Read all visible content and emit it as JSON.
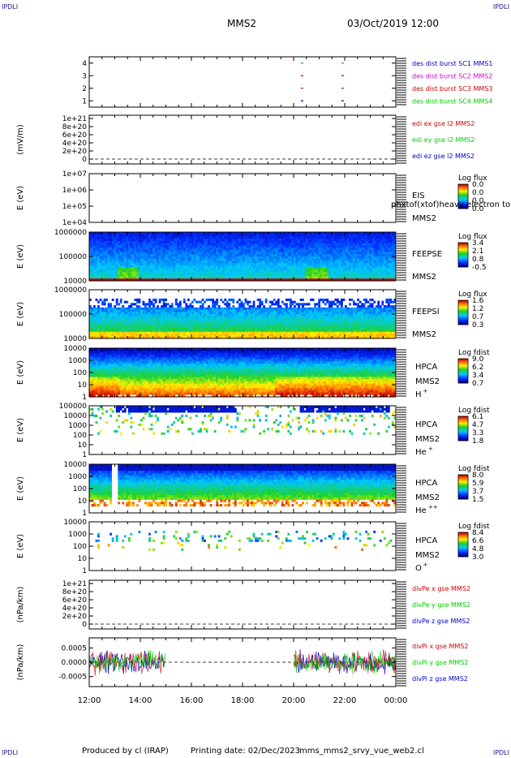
{
  "header": {
    "corner_left": "IPDLI",
    "corner_right": "IPDLI",
    "title": "MMS2",
    "datetime": "03/Oct/2019 12:00"
  },
  "footer": {
    "corner_left": "IPDLI",
    "corner_right": "IPDLI",
    "produced_by": "Produced by cl (IRAP)",
    "printing_date": "Printing date: 02/Dec/2023",
    "script_name": "mms_mms2_srvy_vue_web2.cl"
  },
  "colors": {
    "blue": "#0000cc",
    "magenta": "#cc00cc",
    "red": "#cc0000",
    "green": "#00cc00"
  },
  "chart_data": [
    {
      "id": "fpi-burst",
      "type": "scatter",
      "yticks": [
        "1",
        "2",
        "3",
        "4"
      ],
      "ylim": [
        0.5,
        4.5
      ],
      "legend": [
        {
          "label": "des dist burst SC1 MMS1",
          "color": "#0000cc"
        },
        {
          "label": "des dist burst SC2 MMS2",
          "color": "#cc00cc"
        },
        {
          "label": "des dist burst SC3 MMS3",
          "color": "#cc0000"
        },
        {
          "label": "des dist burst SC4 MMS4",
          "color": "#00cc00"
        }
      ],
      "series": [
        {
          "name": "des dist burst SC1 MMS1",
          "x": [
            "20:20",
            "21:55"
          ],
          "y": [
            1,
            1
          ]
        },
        {
          "name": "des dist burst SC2 MMS2",
          "x": [
            "20:20",
            "21:55"
          ],
          "y": [
            2,
            2
          ]
        },
        {
          "name": "des dist burst SC3 MMS3",
          "x": [
            "20:20",
            "21:55"
          ],
          "y": [
            3,
            3
          ]
        },
        {
          "name": "des dist burst SC4 MMS4",
          "x": [
            "20:20",
            "21:55"
          ],
          "y": [
            4,
            4
          ]
        }
      ]
    },
    {
      "id": "edi",
      "type": "line",
      "ylabel": "(mV/m)",
      "yticks": [
        "1e+21",
        "8e+20",
        "6e+20",
        "4e+20",
        "2e+20",
        "0"
      ],
      "legend": [
        {
          "label": "edi ex gse l2 MMS2",
          "color": "#cc0000"
        },
        {
          "label": "edi ey gse l2 MMS2",
          "color": "#00cc00"
        },
        {
          "label": "edi ez gse l2 MMS2",
          "color": "#0000cc"
        }
      ]
    },
    {
      "id": "eis",
      "type": "heatmap",
      "ylabel": "E (eV)",
      "yticks": [
        "1e+07",
        "1e+06",
        "1e+05",
        "1e+04"
      ],
      "labels": [
        "EIS",
        "MMS2"
      ],
      "overlay_text": "phxtof(xtof)heavy electron to",
      "colorbar": {
        "title": "Log flux",
        "ticks": [
          "0.0",
          "0.0",
          "0.0",
          "0.0"
        ]
      }
    },
    {
      "id": "feepse",
      "type": "heatmap",
      "ylabel": "E (eV)",
      "yticks": [
        "1000000",
        "100000",
        "10000"
      ],
      "labels": [
        "FEEPSE",
        "MMS2"
      ],
      "colorbar": {
        "title": "Log flux",
        "ticks": [
          "3.4",
          "2.1",
          "0.8",
          "-0.5"
        ]
      }
    },
    {
      "id": "feepsi",
      "type": "heatmap",
      "ylabel": "E (eV)",
      "yticks": [
        "1000000",
        "100000",
        "10000"
      ],
      "labels": [
        "FEEPSI",
        "MMS2"
      ],
      "colorbar": {
        "title": "Log flux",
        "ticks": [
          "1.6",
          "1.2",
          "0.7",
          "0.3"
        ]
      }
    },
    {
      "id": "hpca-h",
      "type": "heatmap",
      "ylabel": "E (eV)",
      "yticks": [
        "10000",
        "1000",
        "100",
        "10",
        "1"
      ],
      "labels": [
        "HPCA",
        "MMS2",
        "H"
      ],
      "species_sup": "+",
      "colorbar": {
        "title": "Log fdist",
        "ticks": [
          "9.0",
          "6.2",
          "3.4",
          "0.7"
        ]
      }
    },
    {
      "id": "hpca-he1",
      "type": "heatmap",
      "ylabel": "E (eV)",
      "yticks": [
        "100000",
        "10000",
        "1000",
        "100",
        "10",
        "1"
      ],
      "labels": [
        "HPCA",
        "MMS2",
        "He"
      ],
      "species_sup": "+",
      "colorbar": {
        "title": "Log fdist",
        "ticks": [
          "6.1",
          "4.7",
          "3.3",
          "1.8"
        ]
      }
    },
    {
      "id": "hpca-he2",
      "type": "heatmap",
      "ylabel": "E (eV)",
      "yticks": [
        "10000",
        "1000",
        "100",
        "10",
        "1"
      ],
      "labels": [
        "HPCA",
        "MMS2",
        "He"
      ],
      "species_sup": "++",
      "colorbar": {
        "title": "Log fdist",
        "ticks": [
          "8.0",
          "5.9",
          "3.7",
          "1.5"
        ]
      }
    },
    {
      "id": "hpca-o",
      "type": "heatmap",
      "ylabel": "E (eV)",
      "yticks": [
        "10000",
        "1000",
        "100",
        "10",
        "1"
      ],
      "labels": [
        "HPCA",
        "MMS2",
        "O"
      ],
      "species_sup": "+",
      "colorbar": {
        "title": "Log fdist",
        "ticks": [
          "8.4",
          "6.6",
          "4.8",
          "3.0"
        ]
      }
    },
    {
      "id": "divpe",
      "type": "line",
      "ylabel": "(nPa/km)",
      "yticks": [
        "1e+21",
        "8e+20",
        "6e+20",
        "4e+20",
        "2e+20",
        "0"
      ],
      "legend": [
        {
          "label": "divPe x gse MMS2",
          "color": "#cc0000"
        },
        {
          "label": "divPe y gse MMS2",
          "color": "#00cc00"
        },
        {
          "label": "divPe z gse MMS2",
          "color": "#0000cc"
        }
      ]
    },
    {
      "id": "divpi",
      "type": "line",
      "ylabel": "(nPa/km)",
      "yticks": [
        "0.0005",
        "0.0000",
        "-0.0005"
      ],
      "ylim": [
        -0.00085,
        0.00085
      ],
      "legend": [
        {
          "label": "divPi x gse MMS2",
          "color": "#cc0000"
        },
        {
          "label": "divPi y gse MMS2",
          "color": "#00cc00"
        },
        {
          "label": "divPi z gse MMS2",
          "color": "#0000cc"
        }
      ],
      "data_intervals": [
        [
          "12:00",
          "15:00"
        ],
        [
          "20:00",
          "00:00"
        ]
      ],
      "amplitude": 0.0004
    }
  ],
  "x_axis": {
    "ticks": [
      "12:00",
      "14:00",
      "16:00",
      "18:00",
      "20:00",
      "22:00",
      "00:00"
    ]
  }
}
